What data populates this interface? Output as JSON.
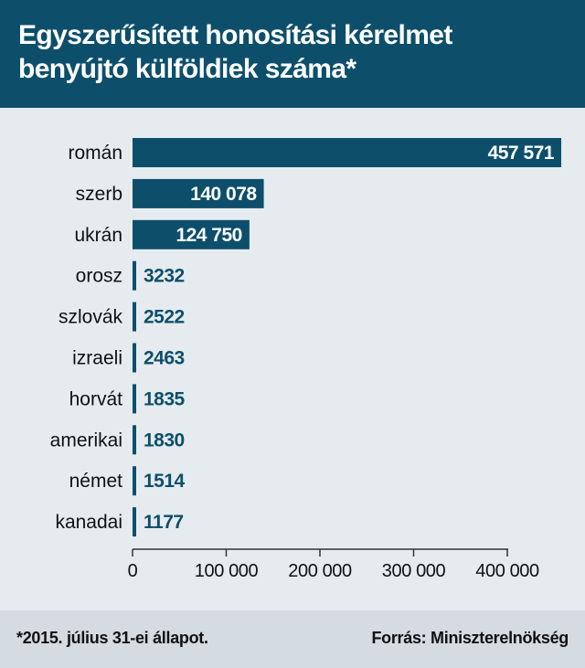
{
  "title": "Egyszerűsített honosítási kérelmet benyújtó külföldiek száma*",
  "footnote": "*2015. július 31-ei állapot.",
  "source": "Forrás: Miniszterelnökség",
  "colors": {
    "header_bg": "#0d4f6b",
    "bar": "#0d4f6b",
    "background": "#e6ebef",
    "footer_bg": "#d4dbe1"
  },
  "chart_data": {
    "type": "bar",
    "orientation": "horizontal",
    "title": "Egyszerűsített honosítási kérelmet benyújtó külföldiek száma*",
    "categories": [
      "román",
      "szerb",
      "ukrán",
      "orosz",
      "szlovák",
      "izraeli",
      "horvát",
      "amerikai",
      "német",
      "kanadai"
    ],
    "values": [
      457571,
      140078,
      124750,
      3232,
      2522,
      2463,
      1835,
      1830,
      1514,
      1177
    ],
    "value_labels": [
      "457 571",
      "140 078",
      "124 750",
      "3232",
      "2522",
      "2463",
      "1835",
      "1830",
      "1514",
      "1177"
    ],
    "xlim": [
      0,
      400000
    ],
    "xticks": [
      0,
      100000,
      200000,
      300000,
      400000
    ],
    "xtick_labels": [
      "0",
      "100 000",
      "200 000",
      "300 000",
      "400 000"
    ],
    "grid": false,
    "legend": "none",
    "xlabel": "",
    "ylabel": ""
  }
}
